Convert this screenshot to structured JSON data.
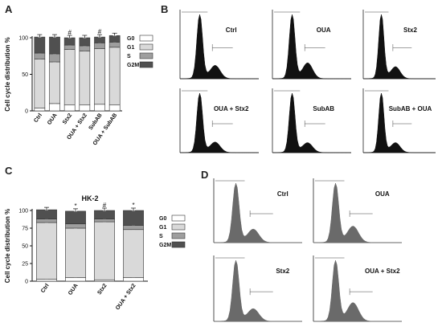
{
  "panels": {
    "a": "A",
    "b": "B",
    "c": "C",
    "d": "D"
  },
  "colors": {
    "G0": "#ffffff",
    "G1": "#d9d9d9",
    "S": "#9e9e9e",
    "G2M": "#505050",
    "histB": "#111111",
    "histD": "#6a6a6a"
  },
  "chart_data": [
    {
      "type": "bar",
      "stacked": true,
      "title": "",
      "ylabel": "Cell cycle distribution %",
      "xlabel": "",
      "ylim": [
        0,
        100
      ],
      "yticks": [
        0,
        50,
        100
      ],
      "categories": [
        "Ctrl",
        "OUA",
        "Stx2",
        "OUA + Stx2",
        "SubAB",
        "OUA + SubAB"
      ],
      "series": [
        {
          "name": "G0",
          "values": [
            4,
            10,
            8,
            8,
            9,
            8
          ]
        },
        {
          "name": "G1",
          "values": [
            67,
            57,
            76,
            74,
            76,
            79
          ]
        },
        {
          "name": "S",
          "values": [
            8,
            11,
            6,
            7,
            8,
            7
          ]
        },
        {
          "name": "G2M",
          "values": [
            22,
            23,
            10,
            11,
            8,
            9
          ]
        }
      ],
      "markers": [
        "",
        "",
        "#",
        "",
        "#",
        ""
      ],
      "legend": "right"
    },
    {
      "type": "bar",
      "stacked": true,
      "title": "HK-2",
      "ylabel": "Cell cycle distribution %",
      "xlabel": "",
      "ylim": [
        0,
        100
      ],
      "yticks": [
        0,
        25,
        50,
        75,
        100
      ],
      "categories": [
        "Ctrl",
        "OUA",
        "Stx2",
        "OUA + Stx2"
      ],
      "series": [
        {
          "name": "G0",
          "values": [
            3,
            5,
            2,
            5
          ]
        },
        {
          "name": "G1",
          "values": [
            80,
            70,
            82,
            68
          ]
        },
        {
          "name": "S",
          "values": [
            5,
            6,
            4,
            6
          ]
        },
        {
          "name": "G2M",
          "values": [
            13,
            18,
            12,
            21
          ]
        }
      ],
      "markers": [
        "",
        "*",
        "#",
        "*"
      ],
      "legend": "right"
    }
  ],
  "histograms_b": [
    {
      "label": "Ctrl",
      "peaks": [
        1.0,
        0.18
      ]
    },
    {
      "label": "OUA",
      "peaks": [
        1.0,
        0.22
      ]
    },
    {
      "label": "Stx2",
      "peaks": [
        1.0,
        0.16
      ]
    },
    {
      "label": "OUA + Stx2",
      "peaks": [
        1.0,
        0.15
      ]
    },
    {
      "label": "SubAB",
      "peaks": [
        1.0,
        0.14
      ]
    },
    {
      "label": "SubAB + OUA",
      "peaks": [
        1.0,
        0.14
      ]
    }
  ],
  "histograms_d": [
    {
      "label": "Ctrl",
      "peaks": [
        1.0,
        0.2
      ]
    },
    {
      "label": "OUA",
      "peaks": [
        1.0,
        0.25
      ]
    },
    {
      "label": "Stx2",
      "peaks": [
        1.0,
        0.18
      ]
    },
    {
      "label": "OUA + Stx2",
      "peaks": [
        1.0,
        0.28
      ]
    }
  ]
}
